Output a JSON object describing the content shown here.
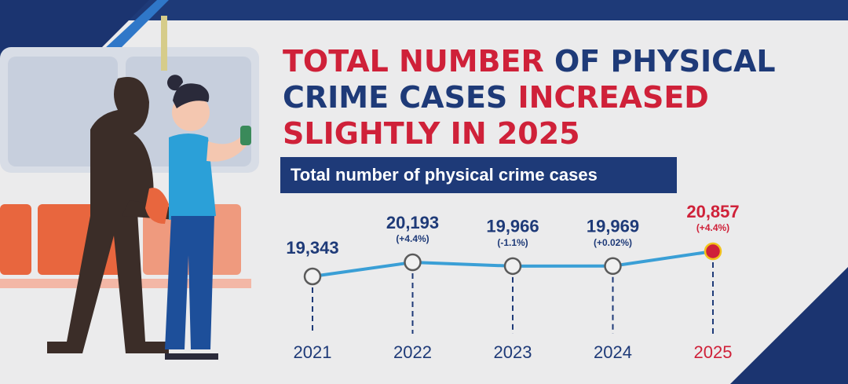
{
  "chart_data": {
    "type": "line",
    "title_lines": [
      [
        {
          "text": "TOTAL NUMBER",
          "color": "#cf2139"
        },
        {
          "text": " OF PHYSICAL",
          "color": "#1e3a78"
        }
      ],
      [
        {
          "text": "CRIME CASES",
          "color": "#1e3a78"
        },
        {
          "text": " INCREASED",
          "color": "#cf2139"
        }
      ],
      [
        {
          "text": "SLIGHTLY IN 2025",
          "color": "#cf2139"
        }
      ]
    ],
    "subtitle": "Total number of physical crime cases",
    "categories": [
      "2021",
      "2022",
      "2023",
      "2024",
      "2025"
    ],
    "values": [
      19343,
      20193,
      19966,
      19969,
      20857
    ],
    "value_labels": [
      "19,343",
      "20,193",
      "19,966",
      "19,969",
      "20,857"
    ],
    "change_labels": [
      null,
      "(+4.4%)",
      "(-1.1%)",
      "(+0.02%)",
      "(+4.4%)"
    ],
    "line_color": "#3a9fd6",
    "point_fills": [
      "#f0f0f0",
      "#f0f0f0",
      "#f0f0f0",
      "#f0f0f0",
      "#cf2139"
    ],
    "point_strokes": [
      "#5a5a5a",
      "#5a5a5a",
      "#5a5a5a",
      "#5a5a5a",
      "#f2c21b"
    ],
    "label_colors": [
      "#1e3a78",
      "#1e3a78",
      "#1e3a78",
      "#1e3a78",
      "#cf2139"
    ]
  }
}
